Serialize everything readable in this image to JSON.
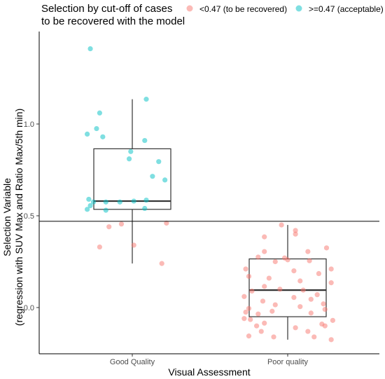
{
  "chart_data": {
    "type": "scatter",
    "subtype": "boxplot with jittered points",
    "xlabel": "Visual Assessment",
    "ylabel_line1": "Selection Variable",
    "ylabel_line2": "(regression with SUV Max and Ratio Max/5th min)",
    "categories": [
      "Good Quality",
      "Poor quality"
    ],
    "y_ticks": [
      0.0,
      0.5,
      1.0
    ],
    "y_tick_labels": [
      "0.0",
      "0.5",
      "1.0"
    ],
    "ylim": [
      -0.27,
      1.5
    ],
    "grid": false,
    "legend": {
      "title_line1": "Selection by cut-off of cases",
      "title_line2": "to be recovered with the model",
      "placement": "top",
      "items": [
        {
          "label": "<0.47 (to be recovered)",
          "color": "#f8766d"
        },
        {
          "label": ">=0.47 (acceptable)",
          "color": "#00bfc4"
        }
      ]
    },
    "cutoff_line": 0.47,
    "boxes": [
      {
        "category": "Good Quality",
        "q1": 0.535,
        "median": 0.58,
        "q3": 0.865,
        "whisker_low": 0.24,
        "whisker_high": 1.135
      },
      {
        "category": "Poor quality",
        "q1": -0.05,
        "median": 0.095,
        "q3": 0.265,
        "whisker_low": -0.175,
        "whisker_high": 0.45
      }
    ],
    "series": [
      {
        "name": ">=0.47 (acceptable)",
        "color": "#00bfc4",
        "category": "Good Quality",
        "points": [
          {
            "jitter": -0.27,
            "y": 1.41
          },
          {
            "jitter": 0.09,
            "y": 1.135
          },
          {
            "jitter": -0.21,
            "y": 1.06
          },
          {
            "jitter": -0.23,
            "y": 0.975
          },
          {
            "jitter": -0.29,
            "y": 0.945
          },
          {
            "jitter": -0.19,
            "y": 0.93
          },
          {
            "jitter": 0.08,
            "y": 0.91
          },
          {
            "jitter": -0.01,
            "y": 0.85
          },
          {
            "jitter": 0.17,
            "y": 0.795
          },
          {
            "jitter": -0.02,
            "y": 0.81
          },
          {
            "jitter": 0.13,
            "y": 0.715
          },
          {
            "jitter": 0.21,
            "y": 0.695
          },
          {
            "jitter": 0.09,
            "y": 0.585
          },
          {
            "jitter": -0.28,
            "y": 0.59
          },
          {
            "jitter": -0.25,
            "y": 0.575
          },
          {
            "jitter": -0.17,
            "y": 0.575
          },
          {
            "jitter": -0.08,
            "y": 0.575
          },
          {
            "jitter": 0.01,
            "y": 0.58
          },
          {
            "jitter": -0.27,
            "y": 0.555
          },
          {
            "jitter": -0.29,
            "y": 0.535
          },
          {
            "jitter": 0.08,
            "y": 0.54
          },
          {
            "jitter": -0.17,
            "y": 0.53
          }
        ]
      },
      {
        "name": "<0.47 (to be recovered)",
        "color": "#f8766d",
        "category": "Good Quality",
        "points": [
          {
            "jitter": -0.07,
            "y": 0.455
          },
          {
            "jitter": -0.15,
            "y": 0.44
          },
          {
            "jitter": 0.22,
            "y": 0.46
          },
          {
            "jitter": -0.21,
            "y": 0.33
          },
          {
            "jitter": 0.01,
            "y": 0.34
          },
          {
            "jitter": 0.19,
            "y": 0.24
          }
        ]
      },
      {
        "name": "<0.47 (to be recovered)",
        "color": "#f8766d",
        "category": "Poor quality",
        "points": [
          {
            "jitter": -0.04,
            "y": 0.45
          },
          {
            "jitter": 0.05,
            "y": 0.42
          },
          {
            "jitter": 0.05,
            "y": 0.4
          },
          {
            "jitter": -0.15,
            "y": 0.385
          },
          {
            "jitter": 0.25,
            "y": 0.325
          },
          {
            "jitter": -0.15,
            "y": 0.305
          },
          {
            "jitter": 0.13,
            "y": 0.305
          },
          {
            "jitter": -0.19,
            "y": 0.275
          },
          {
            "jitter": -0.02,
            "y": 0.27
          },
          {
            "jitter": 0.0,
            "y": 0.26
          },
          {
            "jitter": 0.14,
            "y": 0.255
          },
          {
            "jitter": -0.08,
            "y": 0.25
          },
          {
            "jitter": 0.28,
            "y": 0.21
          },
          {
            "jitter": -0.27,
            "y": 0.21
          },
          {
            "jitter": 0.04,
            "y": 0.2
          },
          {
            "jitter": 0.2,
            "y": 0.185
          },
          {
            "jitter": -0.25,
            "y": 0.17
          },
          {
            "jitter": -0.12,
            "y": 0.16
          },
          {
            "jitter": 0.08,
            "y": 0.145
          },
          {
            "jitter": 0.28,
            "y": 0.135
          },
          {
            "jitter": -0.15,
            "y": 0.115
          },
          {
            "jitter": -0.05,
            "y": 0.1
          },
          {
            "jitter": 0.1,
            "y": 0.095
          },
          {
            "jitter": -0.23,
            "y": 0.09
          },
          {
            "jitter": 0.19,
            "y": 0.07
          },
          {
            "jitter": -0.28,
            "y": 0.06
          },
          {
            "jitter": 0.04,
            "y": 0.055
          },
          {
            "jitter": 0.15,
            "y": 0.045
          },
          {
            "jitter": -0.16,
            "y": 0.035
          },
          {
            "jitter": 0.23,
            "y": 0.02
          },
          {
            "jitter": -0.08,
            "y": 0.015
          },
          {
            "jitter": 0.08,
            "y": 0.005
          },
          {
            "jitter": -0.25,
            "y": -0.005
          },
          {
            "jitter": 0.24,
            "y": -0.01
          },
          {
            "jitter": -0.1,
            "y": -0.02
          },
          {
            "jitter": -0.27,
            "y": -0.025
          },
          {
            "jitter": 0.15,
            "y": -0.03
          },
          {
            "jitter": -0.19,
            "y": -0.035
          },
          {
            "jitter": -0.28,
            "y": -0.06
          },
          {
            "jitter": -0.24,
            "y": -0.065
          },
          {
            "jitter": 0.29,
            "y": -0.07
          },
          {
            "jitter": -0.15,
            "y": -0.085
          },
          {
            "jitter": 0.22,
            "y": -0.09
          },
          {
            "jitter": 0.24,
            "y": -0.1
          },
          {
            "jitter": -0.2,
            "y": -0.1
          },
          {
            "jitter": 0.05,
            "y": -0.11
          },
          {
            "jitter": -0.17,
            "y": -0.13
          },
          {
            "jitter": 0.13,
            "y": -0.13
          },
          {
            "jitter": -0.25,
            "y": -0.155
          },
          {
            "jitter": 0.17,
            "y": -0.16
          },
          {
            "jitter": -0.09,
            "y": -0.16
          },
          {
            "jitter": 0.28,
            "y": -0.175
          }
        ]
      }
    ]
  }
}
